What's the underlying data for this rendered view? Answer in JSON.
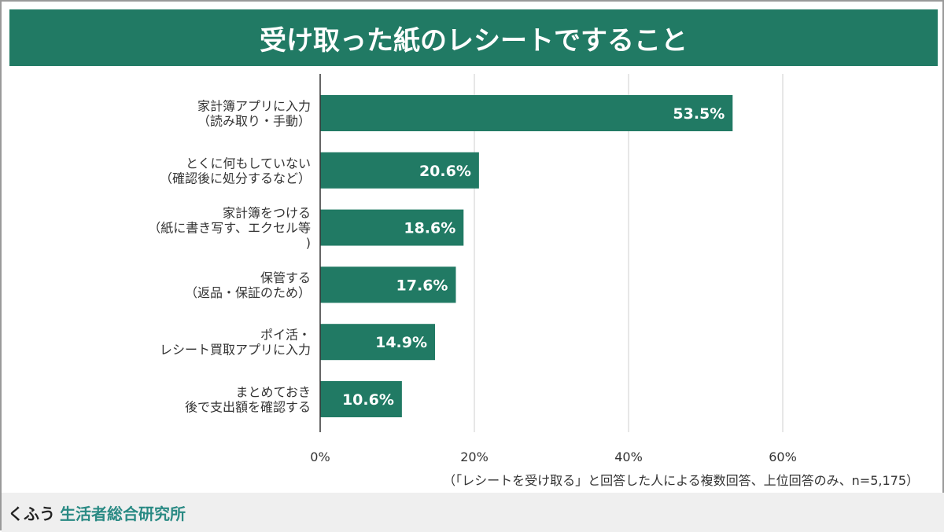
{
  "chart_data": {
    "type": "bar",
    "orientation": "horizontal",
    "title": "受け取った紙のレシートですること",
    "categories": [
      [
        "家計簿アプリに入力",
        "（読み取り・手動）"
      ],
      [
        "とくに何もしていない",
        "（確認後に処分するなど）"
      ],
      [
        "家計簿をつける",
        "（紙に書き写す、エクセル等",
        ")"
      ],
      [
        "保管する",
        "（返品・保証のため）"
      ],
      [
        "ポイ活・",
        "レシート買取アプリに入力"
      ],
      [
        "まとめておき",
        "後で支出額を確認する"
      ]
    ],
    "values": [
      53.5,
      20.6,
      18.6,
      17.6,
      14.9,
      10.6
    ],
    "data_labels": [
      "53.5%",
      "20.6%",
      "18.6%",
      "17.6%",
      "14.9%",
      "10.6%"
    ],
    "xlim": [
      0,
      60
    ],
    "x_ticks": [
      "0%",
      "20%",
      "40%",
      "60%"
    ],
    "grid": true,
    "bar_color": "#217a64",
    "note": "（「レシートを受け取る」と回答した人による複数回答、上位回答のみ、n=5,175）"
  },
  "footer": {
    "brand_a": "くふう",
    "brand_b": "生活者総合研究所"
  }
}
